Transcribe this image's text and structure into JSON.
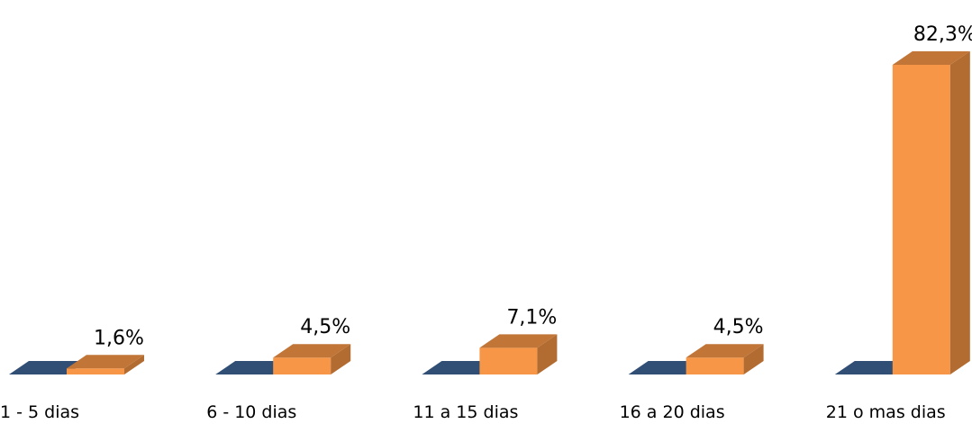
{
  "chart_data": {
    "type": "bar",
    "style": "3d-clustered",
    "categories": [
      "1 - 5 dias",
      "6 - 10 dias",
      "11 a 15 dias",
      "16 a 20 dias",
      "21 o mas dias"
    ],
    "series": [
      {
        "values": [
          0,
          0,
          0,
          0,
          0
        ],
        "color": "#3F6496",
        "labels": [
          "",
          "",
          "",
          "",
          ""
        ]
      },
      {
        "values": [
          1.6,
          4.5,
          7.1,
          4.5,
          82.3
        ],
        "color": "#F79646",
        "labels": [
          "1,6%",
          "4,5%",
          "7,1%",
          "4,5%",
          "82,3%"
        ]
      }
    ],
    "ylim": [
      0,
      82.3
    ],
    "title": "",
    "xlabel": "",
    "ylabel": "",
    "grid": false,
    "legend": "none"
  }
}
